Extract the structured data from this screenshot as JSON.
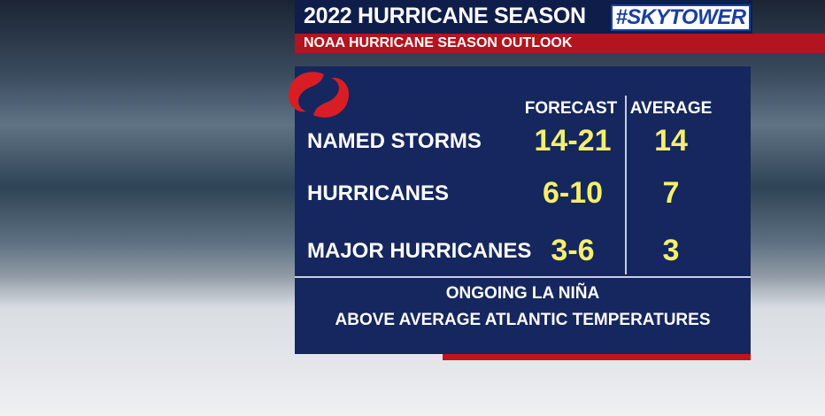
{
  "header": {
    "title": "2022 HURRICANE SEASON",
    "brand": "#SKYTOWER",
    "subtitle": "NOAA HURRICANE SEASON OUTLOOK"
  },
  "table": {
    "columns": [
      "FORECAST",
      "AVERAGE"
    ],
    "rows": [
      [
        "NAMED STORMS",
        "14-21",
        "14"
      ],
      [
        "HURRICANES",
        "6-10",
        "7"
      ],
      [
        "MAJOR HURRICANES",
        "3-6",
        "3"
      ]
    ]
  },
  "notes": [
    "ONGOING LA NIÑA",
    "ABOVE AVERAGE ATLANTIC TEMPERATURES"
  ]
}
